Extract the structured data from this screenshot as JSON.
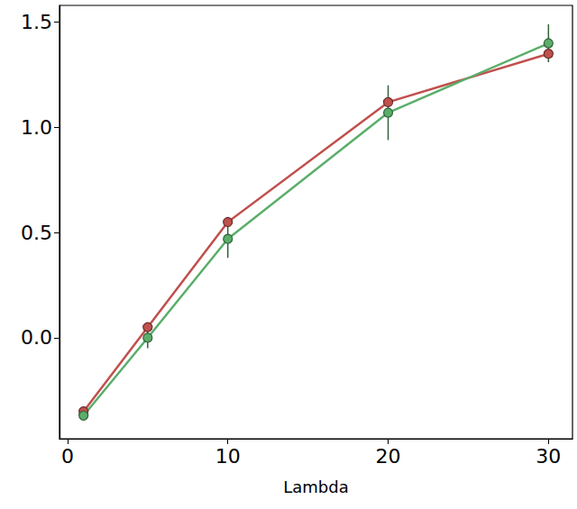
{
  "chart_data": {
    "type": "line",
    "x_label": "Lambda",
    "x": [
      1,
      5,
      10,
      20,
      30
    ],
    "series": [
      {
        "color": "#c0504d",
        "marker": "circle",
        "values": [
          -0.35,
          0.05,
          0.55,
          1.12,
          1.35
        ]
      },
      {
        "color": "#5aae6a",
        "marker": "circle",
        "values": [
          -0.37,
          0.0,
          0.47,
          1.07,
          1.4
        ],
        "errors": [
          0.01,
          0.05,
          0.09,
          0.13,
          0.09
        ]
      }
    ],
    "xlim": [
      -0.5,
      31.5
    ],
    "xticks": [
      0,
      10,
      20,
      30
    ],
    "ylim": [
      -0.48,
      1.58
    ],
    "yticks": [
      {
        "value": 0,
        "label": "0.0"
      },
      0.5,
      {
        "value": 1,
        "label": "1.0"
      },
      1.5
    ],
    "grid": false
  }
}
